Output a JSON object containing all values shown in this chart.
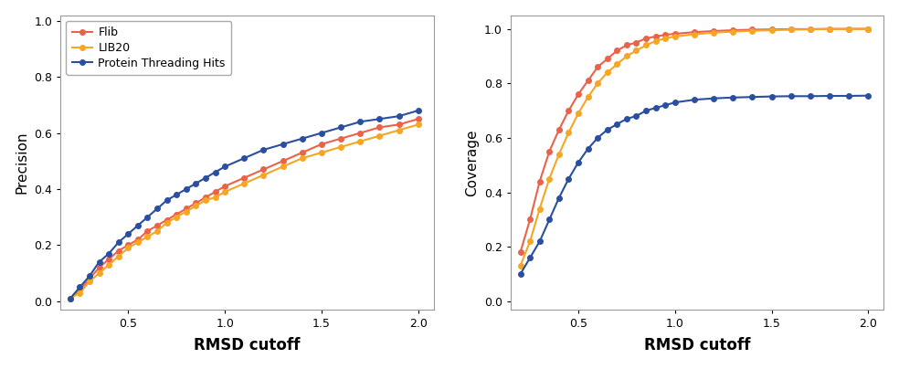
{
  "x": [
    0.2,
    0.25,
    0.3,
    0.35,
    0.4,
    0.45,
    0.5,
    0.55,
    0.6,
    0.65,
    0.7,
    0.75,
    0.8,
    0.85,
    0.9,
    0.95,
    1.0,
    1.1,
    1.2,
    1.3,
    1.4,
    1.5,
    1.6,
    1.7,
    1.8,
    1.9,
    2.0
  ],
  "precision_flib": [
    0.01,
    0.04,
    0.08,
    0.12,
    0.15,
    0.18,
    0.2,
    0.22,
    0.25,
    0.27,
    0.29,
    0.31,
    0.33,
    0.35,
    0.37,
    0.39,
    0.41,
    0.44,
    0.47,
    0.5,
    0.53,
    0.56,
    0.58,
    0.6,
    0.62,
    0.63,
    0.65
  ],
  "precision_lib20": [
    0.01,
    0.03,
    0.07,
    0.1,
    0.13,
    0.16,
    0.19,
    0.21,
    0.23,
    0.25,
    0.28,
    0.3,
    0.32,
    0.34,
    0.36,
    0.37,
    0.39,
    0.42,
    0.45,
    0.48,
    0.51,
    0.53,
    0.55,
    0.57,
    0.59,
    0.61,
    0.63
  ],
  "precision_threading": [
    0.01,
    0.05,
    0.09,
    0.14,
    0.17,
    0.21,
    0.24,
    0.27,
    0.3,
    0.33,
    0.36,
    0.38,
    0.4,
    0.42,
    0.44,
    0.46,
    0.48,
    0.51,
    0.54,
    0.56,
    0.58,
    0.6,
    0.62,
    0.64,
    0.65,
    0.66,
    0.68
  ],
  "coverage_x": [
    0.2,
    0.25,
    0.3,
    0.35,
    0.4,
    0.45,
    0.5,
    0.55,
    0.6,
    0.65,
    0.7,
    0.75,
    0.8,
    0.85,
    0.9,
    0.95,
    1.0,
    1.1,
    1.2,
    1.3,
    1.4,
    1.5,
    1.6,
    1.7,
    1.8,
    1.9,
    2.0
  ],
  "coverage_flib": [
    0.18,
    0.3,
    0.44,
    0.55,
    0.63,
    0.7,
    0.76,
    0.81,
    0.86,
    0.89,
    0.92,
    0.94,
    0.95,
    0.965,
    0.972,
    0.978,
    0.982,
    0.988,
    0.992,
    0.995,
    0.997,
    0.998,
    0.999,
    0.999,
    1.0,
    1.0,
    1.0
  ],
  "coverage_lib20": [
    0.13,
    0.22,
    0.34,
    0.45,
    0.54,
    0.62,
    0.69,
    0.75,
    0.8,
    0.84,
    0.87,
    0.9,
    0.92,
    0.94,
    0.955,
    0.965,
    0.972,
    0.98,
    0.986,
    0.99,
    0.993,
    0.995,
    0.997,
    0.998,
    0.999,
    0.999,
    1.0
  ],
  "coverage_threading": [
    0.1,
    0.16,
    0.22,
    0.3,
    0.38,
    0.45,
    0.51,
    0.56,
    0.6,
    0.63,
    0.65,
    0.67,
    0.68,
    0.7,
    0.71,
    0.72,
    0.73,
    0.74,
    0.745,
    0.748,
    0.75,
    0.752,
    0.753,
    0.753,
    0.754,
    0.754,
    0.755
  ],
  "color_flib": "#E8634A",
  "color_lib20": "#F5A623",
  "color_threading": "#2B4FA0",
  "xlabel": "RMSD cutoff",
  "ylabel_left": "Precision",
  "ylabel_right": "Coverage",
  "legend_labels": [
    "Flib",
    "LIB20",
    "Protein Threading Hits"
  ],
  "xlim": [
    0.15,
    2.08
  ],
  "ylim_precision": [
    -0.03,
    1.02
  ],
  "ylim_coverage": [
    -0.03,
    1.05
  ],
  "xticks": [
    0.5,
    1.0,
    1.5,
    2.0
  ],
  "yticks": [
    0.0,
    0.2,
    0.4,
    0.6,
    0.8,
    1.0
  ],
  "bg_color": "#EBEBEB",
  "panel_bg": "#F2F2F2",
  "grid_color": "white",
  "spine_color": "#999999",
  "marker_size": 4,
  "linewidth": 1.5,
  "tick_fontsize": 9,
  "label_fontsize": 11,
  "xlabel_fontsize": 12,
  "legend_fontsize": 9
}
